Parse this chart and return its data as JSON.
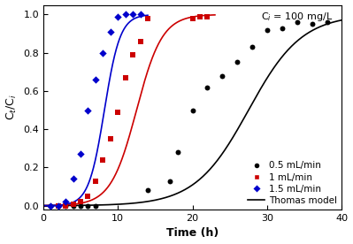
{
  "title_annotation": "C$_i$ = 100 mg/L",
  "xlabel": "Time (h)",
  "ylabel": "C$_t$/C$_i$",
  "xlim": [
    0,
    40
  ],
  "ylim": [
    0,
    1.05
  ],
  "yticks": [
    0.0,
    0.2,
    0.4,
    0.6,
    0.8,
    1.0
  ],
  "xticks": [
    0,
    10,
    20,
    30,
    40
  ],
  "black_dots_x": [
    1,
    2,
    3,
    4,
    5,
    6,
    7,
    14,
    17,
    18,
    20,
    22,
    24,
    26,
    28,
    30,
    32,
    34,
    36,
    38
  ],
  "black_dots_y": [
    0.0,
    0.0,
    0.0,
    0.0,
    0.0,
    0.0,
    0.0,
    0.08,
    0.13,
    0.28,
    0.5,
    0.62,
    0.68,
    0.75,
    0.83,
    0.92,
    0.93,
    0.96,
    0.95,
    0.96
  ],
  "red_squares_x": [
    2,
    3,
    4,
    5,
    6,
    7,
    8,
    9,
    10,
    11,
    12,
    13,
    14,
    20,
    21,
    22
  ],
  "red_squares_y": [
    0.0,
    0.0,
    0.01,
    0.02,
    0.05,
    0.13,
    0.24,
    0.35,
    0.49,
    0.67,
    0.79,
    0.86,
    0.98,
    0.98,
    0.99,
    0.99
  ],
  "blue_diamonds_x": [
    1,
    2,
    3,
    4,
    5,
    6,
    7,
    8,
    9,
    10,
    11,
    12,
    13
  ],
  "blue_diamonds_y": [
    0.0,
    0.0,
    0.02,
    0.14,
    0.27,
    0.5,
    0.66,
    0.8,
    0.91,
    0.99,
    1.0,
    1.0,
    1.0
  ],
  "thomas_black_k": 0.28,
  "thomas_black_t50": 27.5,
  "thomas_red_k": 0.58,
  "thomas_red_t50": 12.5,
  "thomas_blue_k": 0.95,
  "thomas_blue_t50": 8.2,
  "dot_color": "#000000",
  "square_color": "#cc0000",
  "diamond_color": "#0000cc",
  "line_color_black": "#000000",
  "line_color_red": "#cc0000",
  "line_color_blue": "#0000cc",
  "legend_labels": [
    "0.5 mL/min",
    "1 mL/min",
    "1.5 mL/min",
    "Thomas model"
  ],
  "background_color": "#ffffff"
}
